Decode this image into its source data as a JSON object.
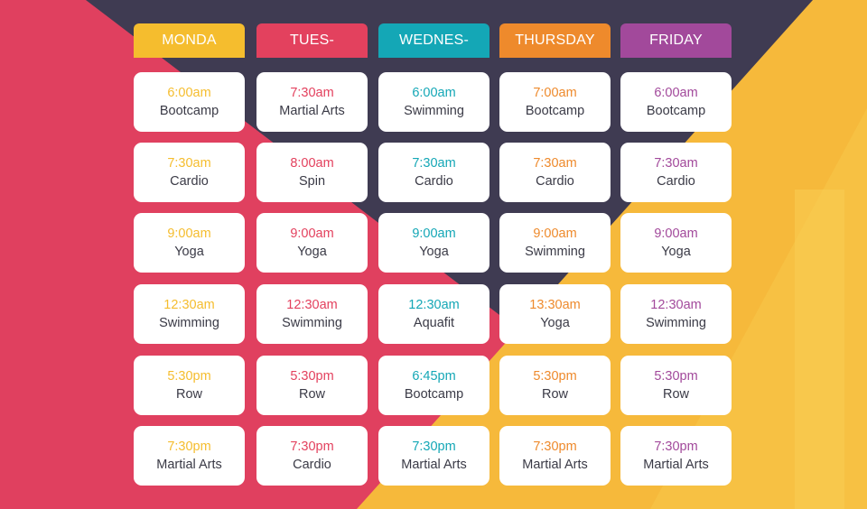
{
  "colors": {
    "navy": "#3f3b52",
    "pink": "#e0405f",
    "yellow": "#f6b93b",
    "monday": "#f5bd2e",
    "tuesday": "#e3415e",
    "wednesday": "#14a7b6",
    "thursday": "#ee8a2c",
    "friday": "#a2499b"
  },
  "days": [
    {
      "key": "monday",
      "label": "MONDA",
      "sessions": [
        {
          "time": "6:00am",
          "class": "Bootcamp"
        },
        {
          "time": "7:30am",
          "class": "Cardio"
        },
        {
          "time": "9:00am",
          "class": "Yoga"
        },
        {
          "time": "12:30am",
          "class": "Swimming"
        },
        {
          "time": "5:30pm",
          "class": "Row"
        },
        {
          "time": "7:30pm",
          "class": "Martial Arts"
        }
      ]
    },
    {
      "key": "tuesday",
      "label": "TUES-",
      "sessions": [
        {
          "time": "7:30am",
          "class": "Martial Arts"
        },
        {
          "time": "8:00am",
          "class": "Spin"
        },
        {
          "time": "9:00am",
          "class": "Yoga"
        },
        {
          "time": "12:30am",
          "class": "Swimming"
        },
        {
          "time": "5:30pm",
          "class": "Row"
        },
        {
          "time": "7:30pm",
          "class": "Cardio"
        }
      ]
    },
    {
      "key": "wednesday",
      "label": "WEDNES-",
      "sessions": [
        {
          "time": "6:00am",
          "class": "Swimming"
        },
        {
          "time": "7:30am",
          "class": "Cardio"
        },
        {
          "time": "9:00am",
          "class": "Yoga"
        },
        {
          "time": "12:30am",
          "class": "Aquafit"
        },
        {
          "time": "6:45pm",
          "class": "Bootcamp"
        },
        {
          "time": "7:30pm",
          "class": "Martial Arts"
        }
      ]
    },
    {
      "key": "thursday",
      "label": "THURSDAY",
      "sessions": [
        {
          "time": "7:00am",
          "class": "Bootcamp"
        },
        {
          "time": "7:30am",
          "class": "Cardio"
        },
        {
          "time": "9:00am",
          "class": "Swimming"
        },
        {
          "time": "13:30am",
          "class": "Yoga"
        },
        {
          "time": "5:30pm",
          "class": "Row"
        },
        {
          "time": "7:30pm",
          "class": "Martial Arts"
        }
      ]
    },
    {
      "key": "friday",
      "label": "FRIDAY",
      "sessions": [
        {
          "time": "6:00am",
          "class": "Bootcamp"
        },
        {
          "time": "7:30am",
          "class": "Cardio"
        },
        {
          "time": "9:00am",
          "class": "Yoga"
        },
        {
          "time": "12:30am",
          "class": "Swimming"
        },
        {
          "time": "5:30pm",
          "class": "Row"
        },
        {
          "time": "7:30pm",
          "class": "Martial Arts"
        }
      ]
    }
  ]
}
